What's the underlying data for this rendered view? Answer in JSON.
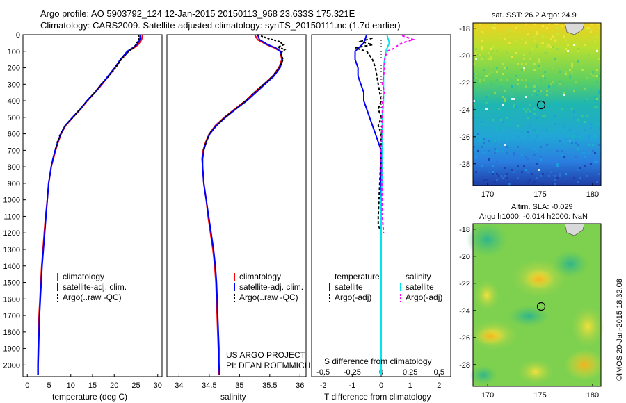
{
  "header": {
    "line1": "Argo profile: AO 5903792_124 12-Jan-2015 20150113_968 23.633S 175.321E",
    "line2": "Climatology: CARS2009. Satellite-adjusted climatology: synTS_20150111.nc (1.7d earlier)"
  },
  "credit": {
    "line1": "US ARGO PROJECT",
    "line2": "PI: DEAN ROEMMICH"
  },
  "timestamp": "©IMOS 20-Jan-2015 18:32:08",
  "colors": {
    "climatology": "#ff0000",
    "satellite": "#0000ff",
    "argo": "#000000",
    "sal_satellite": "#00e5ee",
    "sal_argo": "#ff00ff"
  },
  "map_top": {
    "title": "sat. SST: 26.2  Argo: 24.9",
    "xticks": [
      170,
      175,
      180
    ],
    "yticks": [
      -18,
      -20,
      -22,
      -24,
      -26,
      -28
    ]
  },
  "map_bottom": {
    "title1": "Altim. SLA: -0.029",
    "title2": "Argo h1000: -0.014 h2000: NaN",
    "xticks": [
      170,
      175,
      180
    ],
    "yticks": [
      -18,
      -20,
      -22,
      -24,
      -26,
      -28
    ]
  },
  "chart_data": [
    {
      "type": "line",
      "xlabel": "temperature (deg C)",
      "ylabel": "",
      "xlim": [
        -1,
        31
      ],
      "ylim": [
        2070,
        0
      ],
      "xticks": [
        0,
        5,
        10,
        15,
        20,
        25,
        30
      ],
      "yticks": [
        0,
        100,
        200,
        300,
        400,
        500,
        600,
        700,
        800,
        900,
        1000,
        1100,
        1200,
        1300,
        1400,
        1500,
        1600,
        1700,
        1800,
        1900,
        2000
      ],
      "legend": [
        "climatology",
        "satellite-adj. clim.",
        "Argo(..raw -QC)"
      ],
      "series": [
        {
          "name": "climatology",
          "points": [
            [
              26.5,
              0
            ],
            [
              26.3,
              30
            ],
            [
              25.5,
              60
            ],
            [
              24.5,
              80
            ],
            [
              23.2,
              100
            ],
            [
              21.5,
              150
            ],
            [
              20.2,
              200
            ],
            [
              18.7,
              250
            ],
            [
              17.2,
              300
            ],
            [
              15.6,
              350
            ],
            [
              13.8,
              400
            ],
            [
              12.3,
              450
            ],
            [
              10.5,
              500
            ],
            [
              8.8,
              550
            ],
            [
              7.8,
              600
            ],
            [
              7.1,
              650
            ],
            [
              6.5,
              700
            ],
            [
              6,
              750
            ],
            [
              5.5,
              800
            ],
            [
              5.2,
              850
            ],
            [
              4.9,
              900
            ],
            [
              4.6,
              1000
            ],
            [
              4.2,
              1100
            ],
            [
              3.9,
              1200
            ],
            [
              3.6,
              1300
            ],
            [
              3.3,
              1400
            ],
            [
              3.1,
              1500
            ],
            [
              2.9,
              1600
            ],
            [
              2.7,
              1700
            ],
            [
              2.6,
              1800
            ],
            [
              2.5,
              1900
            ],
            [
              2.4,
              2000
            ],
            [
              2.4,
              2060
            ]
          ]
        },
        {
          "name": "satellite-adj. clim.",
          "points": [
            [
              26,
              0
            ],
            [
              25.9,
              30
            ],
            [
              25.2,
              60
            ],
            [
              24.2,
              80
            ],
            [
              23,
              100
            ],
            [
              21.4,
              150
            ],
            [
              20.1,
              200
            ],
            [
              18.6,
              250
            ],
            [
              17.1,
              300
            ],
            [
              15.5,
              350
            ],
            [
              13.7,
              400
            ],
            [
              12.2,
              450
            ],
            [
              10.4,
              500
            ],
            [
              8.7,
              550
            ],
            [
              7.7,
              600
            ],
            [
              7,
              650
            ],
            [
              6.4,
              700
            ],
            [
              5.9,
              750
            ],
            [
              5.5,
              800
            ],
            [
              5.2,
              850
            ],
            [
              4.9,
              900
            ],
            [
              4.6,
              1000
            ],
            [
              4.3,
              1100
            ],
            [
              4,
              1200
            ],
            [
              3.7,
              1300
            ],
            [
              3.4,
              1400
            ],
            [
              3.2,
              1500
            ],
            [
              3,
              1600
            ],
            [
              2.8,
              1700
            ],
            [
              2.7,
              1800
            ],
            [
              2.6,
              1900
            ],
            [
              2.5,
              2000
            ],
            [
              2.5,
              2060
            ]
          ]
        },
        {
          "name": "Argo(..raw -QC)",
          "points": [
            [
              25.6,
              0
            ],
            [
              25.6,
              30
            ],
            [
              25,
              60
            ],
            [
              24.4,
              80
            ],
            [
              23.3,
              100
            ],
            [
              21.6,
              150
            ],
            [
              20.3,
              200
            ],
            [
              18.8,
              250
            ],
            [
              17,
              300
            ],
            [
              15.5,
              350
            ],
            [
              13.8,
              400
            ],
            [
              12.1,
              450
            ],
            [
              10.5,
              500
            ],
            [
              8.8,
              550
            ],
            [
              7.6,
              600
            ],
            [
              6.9,
              650
            ],
            [
              6.4,
              700
            ]
          ]
        }
      ]
    },
    {
      "type": "line",
      "xlabel": "salinity",
      "xlim": [
        33.8,
        36.1
      ],
      "ylim": [
        2070,
        0
      ],
      "xticks": [
        34,
        34.5,
        35,
        35.5,
        36
      ],
      "legend": [
        "climatology",
        "satellite-adj. clim.",
        "Argo(..raw -QC)"
      ],
      "series": [
        {
          "name": "climatology",
          "points": [
            [
              35.25,
              0
            ],
            [
              35.3,
              30
            ],
            [
              35.45,
              60
            ],
            [
              35.58,
              80
            ],
            [
              35.67,
              100
            ],
            [
              35.7,
              150
            ],
            [
              35.65,
              200
            ],
            [
              35.55,
              250
            ],
            [
              35.4,
              300
            ],
            [
              35.25,
              350
            ],
            [
              35.1,
              400
            ],
            [
              34.92,
              450
            ],
            [
              34.75,
              500
            ],
            [
              34.6,
              550
            ],
            [
              34.5,
              600
            ],
            [
              34.44,
              650
            ],
            [
              34.4,
              700
            ],
            [
              34.38,
              750
            ],
            [
              34.39,
              800
            ],
            [
              34.41,
              900
            ],
            [
              34.45,
              1000
            ],
            [
              34.48,
              1100
            ],
            [
              34.52,
              1200
            ],
            [
              34.56,
              1300
            ],
            [
              34.59,
              1400
            ],
            [
              34.61,
              1500
            ],
            [
              34.62,
              1600
            ],
            [
              34.63,
              1700
            ],
            [
              34.64,
              1800
            ],
            [
              34.65,
              1900
            ],
            [
              34.66,
              2000
            ],
            [
              34.66,
              2060
            ]
          ]
        },
        {
          "name": "satellite-adj. clim.",
          "points": [
            [
              35.3,
              0
            ],
            [
              35.33,
              30
            ],
            [
              35.47,
              60
            ],
            [
              35.6,
              80
            ],
            [
              35.68,
              100
            ],
            [
              35.71,
              150
            ],
            [
              35.67,
              200
            ],
            [
              35.57,
              250
            ],
            [
              35.42,
              300
            ],
            [
              35.27,
              350
            ],
            [
              35.12,
              400
            ],
            [
              34.94,
              450
            ],
            [
              34.77,
              500
            ],
            [
              34.62,
              550
            ],
            [
              34.51,
              600
            ],
            [
              34.45,
              650
            ],
            [
              34.41,
              700
            ],
            [
              34.39,
              750
            ],
            [
              34.39,
              800
            ],
            [
              34.41,
              900
            ],
            [
              34.45,
              1000
            ],
            [
              34.49,
              1100
            ],
            [
              34.53,
              1200
            ],
            [
              34.57,
              1300
            ],
            [
              34.6,
              1400
            ],
            [
              34.62,
              1500
            ],
            [
              34.63,
              1600
            ],
            [
              34.64,
              1700
            ],
            [
              34.65,
              1800
            ],
            [
              34.66,
              1900
            ],
            [
              34.66,
              2000
            ],
            [
              34.67,
              2060
            ]
          ]
        },
        {
          "name": "Argo(..raw -QC)",
          "points": [
            [
              35.3,
              0
            ],
            [
              35.45,
              20
            ],
            [
              35.65,
              40
            ],
            [
              35.73,
              60
            ],
            [
              35.63,
              75
            ],
            [
              35.75,
              90
            ],
            [
              35.68,
              110
            ],
            [
              35.72,
              150
            ],
            [
              35.66,
              200
            ],
            [
              35.55,
              250
            ],
            [
              35.4,
              300
            ],
            [
              35.24,
              350
            ],
            [
              35.1,
              400
            ],
            [
              34.93,
              450
            ],
            [
              34.76,
              500
            ],
            [
              34.62,
              550
            ],
            [
              34.5,
              600
            ],
            [
              34.45,
              650
            ],
            [
              34.4,
              700
            ]
          ]
        }
      ]
    },
    {
      "type": "line",
      "title": "",
      "xlabel": "T difference from climatology",
      "x2label": "S difference from climatology",
      "xlim": [
        -2.4,
        2.4
      ],
      "ylim": [
        2070,
        0
      ],
      "xticks": [
        -2,
        -1,
        0,
        1,
        2
      ],
      "x2ticks": [
        -0.5,
        -0.25,
        0,
        0.25,
        0.5
      ],
      "legend_left_title": "temperature",
      "legend_right_title": "salinity",
      "legend": [
        "satellite",
        "Argo(-adj)",
        "satellite",
        "Argo(-adj)"
      ],
      "series": [
        {
          "name": "satellite",
          "variable": "temperature",
          "points": [
            [
              -0.5,
              0
            ],
            [
              -0.6,
              50
            ],
            [
              -0.9,
              100
            ],
            [
              -0.9,
              150
            ],
            [
              -0.8,
              200
            ],
            [
              -0.8,
              250
            ],
            [
              -0.7,
              300
            ],
            [
              -0.6,
              350
            ],
            [
              -0.6,
              400
            ],
            [
              -0.5,
              450
            ],
            [
              -0.4,
              500
            ],
            [
              -0.3,
              550
            ],
            [
              -0.2,
              600
            ],
            [
              -0.1,
              650
            ],
            [
              0,
              700
            ],
            [
              0,
              800
            ],
            [
              0,
              1000
            ],
            [
              0,
              1500
            ],
            [
              0,
              2000
            ],
            [
              0,
              2060
            ]
          ]
        },
        {
          "name": "Argo(-adj)",
          "variable": "temperature",
          "points": [
            [
              -0.3,
              20
            ],
            [
              -0.7,
              40
            ],
            [
              -0.3,
              60
            ],
            [
              -0.9,
              80
            ],
            [
              -0.5,
              100
            ],
            [
              -0.3,
              150
            ],
            [
              -0.2,
              200
            ],
            [
              -0.1,
              300
            ],
            [
              0,
              400
            ],
            [
              -0.1,
              450
            ],
            [
              0,
              500
            ],
            [
              -0.1,
              550
            ],
            [
              0,
              600
            ],
            [
              0,
              700
            ],
            [
              -0.1,
              1100
            ],
            [
              -0.1,
              1150
            ],
            [
              0,
              1200
            ]
          ]
        },
        {
          "name": "satellite",
          "variable": "salinity",
          "points": [
            [
              0.05,
              0
            ],
            [
              0.07,
              50
            ],
            [
              0.04,
              100
            ],
            [
              0.03,
              150
            ],
            [
              0.02,
              200
            ],
            [
              0.02,
              300
            ],
            [
              0.02,
              400
            ],
            [
              0.01,
              500
            ],
            [
              0.01,
              600
            ],
            [
              0.01,
              800
            ],
            [
              0,
              1000
            ],
            [
              0,
              1500
            ],
            [
              0,
              2000
            ],
            [
              0,
              2060
            ]
          ]
        },
        {
          "name": "Argo(-adj)",
          "variable": "salinity",
          "points": [
            [
              0.18,
              5
            ],
            [
              0.28,
              30
            ],
            [
              0.22,
              40
            ],
            [
              0.15,
              60
            ],
            [
              0.12,
              80
            ],
            [
              0.05,
              100
            ],
            [
              0.03,
              150
            ],
            [
              0.03,
              200
            ],
            [
              0.01,
              300
            ],
            [
              0.03,
              350
            ],
            [
              0.01,
              400
            ],
            [
              0.01,
              500
            ],
            [
              0,
              700
            ],
            [
              0.01,
              1100
            ],
            [
              0.02,
              1200
            ]
          ]
        }
      ]
    }
  ]
}
